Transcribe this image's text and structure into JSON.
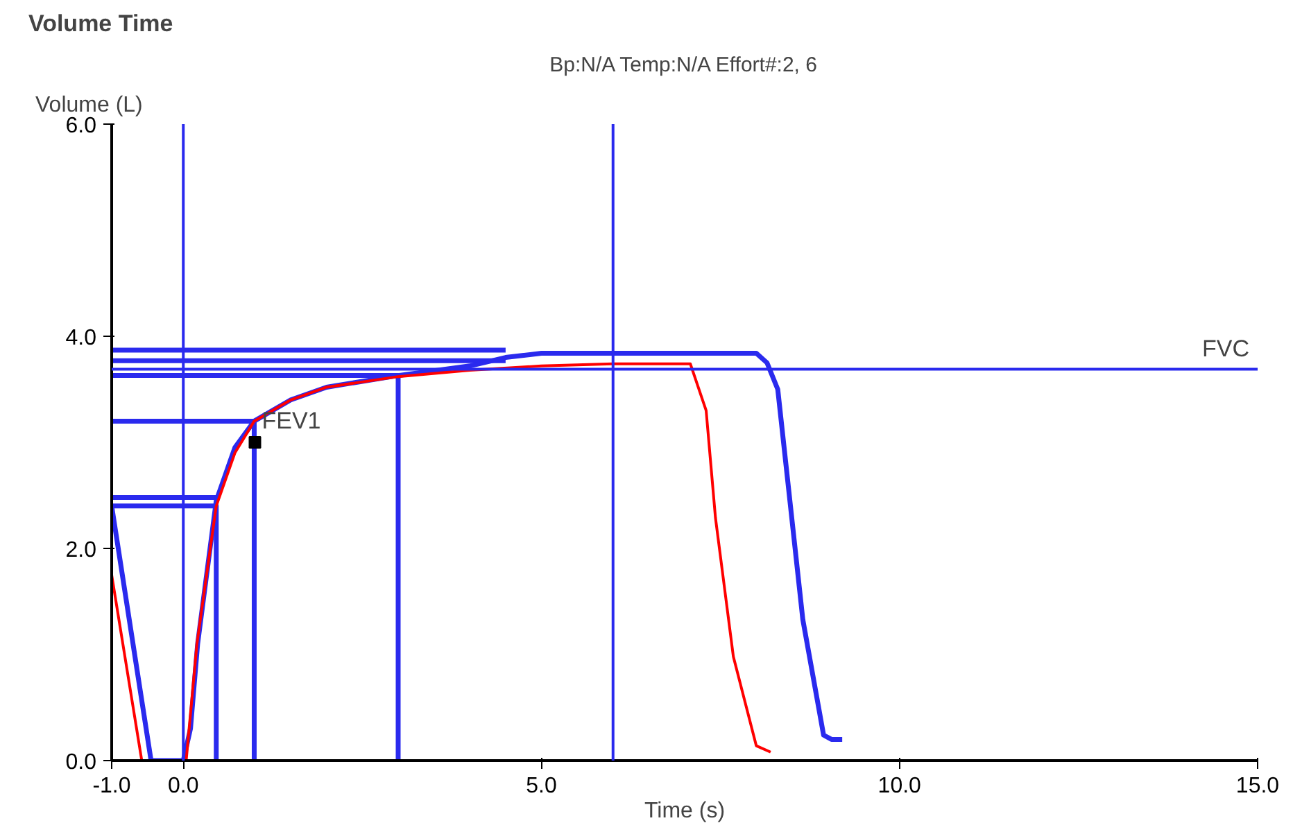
{
  "chart_data": {
    "type": "line",
    "title": "Volume Time",
    "subtitle": "Bp:N/A Temp:N/A Effort#:2, 6",
    "xlabel": "Time (s)",
    "ylabel": "Volume (L)",
    "xlim": [
      -1,
      15
    ],
    "ylim": [
      0,
      6
    ],
    "xticks": [
      {
        "value": -1,
        "label": "-1.0"
      },
      {
        "value": 0,
        "label": "0.0"
      },
      {
        "value": 5,
        "label": "5.0"
      },
      {
        "value": 10,
        "label": "10.0"
      },
      {
        "value": 15,
        "label": "15.0"
      }
    ],
    "yticks": [
      {
        "value": 0,
        "label": "0.0"
      },
      {
        "value": 2,
        "label": "2.0"
      },
      {
        "value": 4,
        "label": "4.0"
      },
      {
        "value": 6,
        "label": "6.0"
      }
    ],
    "grid": false,
    "marker": "none",
    "line_style": "solid",
    "series": [
      {
        "color": "#2a2aee",
        "x": [
          -1,
          0.46,
          0.46
        ],
        "values": [
          2.4,
          2.4,
          0
        ]
      },
      {
        "color": "#2a2aee",
        "x": [
          -1,
          0.46
        ],
        "values": [
          2.48,
          2.48
        ]
      },
      {
        "color": "#2a2aee",
        "x": [
          -1,
          0.99,
          0.99
        ],
        "values": [
          3.2,
          3.2,
          0
        ]
      },
      {
        "color": "#2a2aee",
        "x": [
          -1,
          3.0,
          3.0
        ],
        "values": [
          3.63,
          3.63,
          0
        ]
      },
      {
        "color": "#2a2aee",
        "x": [
          -1,
          4.5
        ],
        "values": [
          3.77,
          3.77
        ]
      },
      {
        "color": "#2a2aee",
        "x": [
          -1,
          4.5
        ],
        "values": [
          3.87,
          3.87
        ]
      },
      {
        "color": "#2a2aee",
        "x": [
          -1,
          -0.45,
          0,
          0.1,
          0.2,
          0.46,
          0.72,
          0.99,
          1.5,
          2,
          3,
          4,
          4.5,
          5,
          6,
          7,
          8.0,
          8.15,
          8.3,
          8.65,
          8.94,
          9.05,
          9.2
        ],
        "values": [
          2.4,
          0,
          0,
          0.3,
          1.1,
          2.45,
          2.95,
          3.2,
          3.4,
          3.52,
          3.63,
          3.72,
          3.8,
          3.84,
          3.84,
          3.84,
          3.84,
          3.75,
          3.5,
          1.33,
          0.24,
          0.2,
          0.2
        ]
      },
      {
        "color": "#ff0000",
        "x": [
          -1,
          -0.58,
          0.04,
          0.19,
          0.46,
          0.72,
          0.99,
          1.5,
          2,
          3,
          4,
          5,
          6,
          7.08,
          7.3,
          7.43,
          7.68,
          8.0,
          8.2
        ],
        "values": [
          1.75,
          0,
          0,
          1.1,
          2.4,
          2.9,
          3.2,
          3.4,
          3.52,
          3.62,
          3.68,
          3.72,
          3.74,
          3.74,
          3.3,
          2.29,
          0.98,
          0.14,
          0.08
        ]
      },
      {
        "type": "scatter",
        "marker": "square",
        "color": "#000000",
        "x": [
          1.0
        ],
        "values": [
          3.0
        ]
      }
    ],
    "ref_lines": [
      {
        "axis": "x",
        "value": 0,
        "color": "#2a2aee"
      },
      {
        "axis": "x",
        "value": 6,
        "color": "#2a2aee"
      },
      {
        "axis": "y",
        "value": 3.69,
        "label": "FVC",
        "color": "#2a2aee"
      }
    ],
    "annotations": [
      {
        "text": "FEV1",
        "x": 1.0,
        "y": 3.0
      }
    ]
  }
}
